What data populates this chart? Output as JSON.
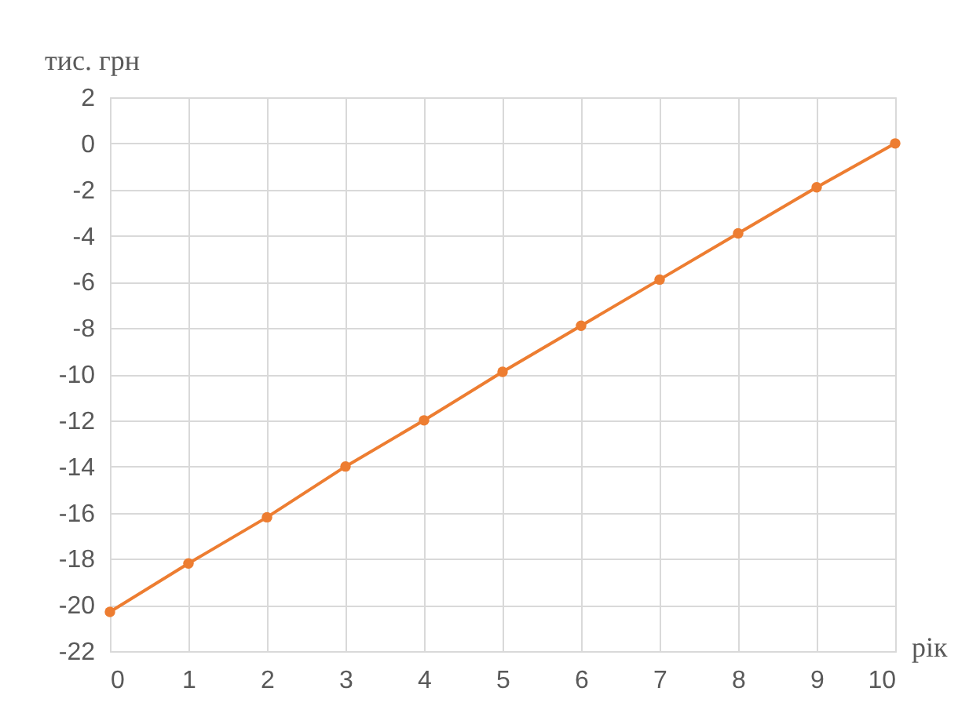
{
  "chart_data": {
    "type": "line",
    "xlabel": "рік",
    "ylabel": "тис. грн",
    "x": [
      0,
      1,
      2,
      3,
      4,
      5,
      6,
      7,
      8,
      9,
      10
    ],
    "series": [
      {
        "color": "#ed7d31",
        "values": [
          -20.3,
          -18.2,
          -16.2,
          -14.0,
          -12.0,
          -9.9,
          -7.9,
          -5.9,
          -3.9,
          -1.9,
          0
        ]
      }
    ],
    "xlim": [
      0,
      10
    ],
    "xticks": [
      0,
      1,
      2,
      3,
      4,
      5,
      6,
      7,
      8,
      9,
      10
    ],
    "ylim": [
      -22,
      2
    ],
    "yticks": [
      -22,
      -20,
      -18,
      -16,
      -14,
      -12,
      -10,
      -8,
      -6,
      -4,
      -2,
      0,
      2
    ],
    "grid": true,
    "marker": "circle",
    "line_style": "solid"
  }
}
